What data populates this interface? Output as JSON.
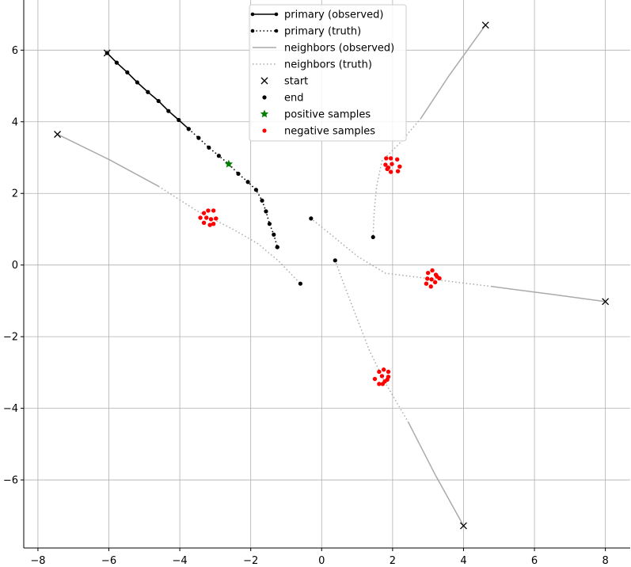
{
  "chart_data": {
    "type": "line",
    "xlim": [
      -8.4,
      8.7
    ],
    "ylim": [
      -7.9,
      7.4
    ],
    "x_ticks": [
      -8,
      -6,
      -4,
      -2,
      0,
      2,
      4,
      6,
      8
    ],
    "y_ticks": [
      -6,
      -4,
      -2,
      0,
      2,
      4,
      6
    ],
    "x_tick_labels": [
      "−8",
      "−6",
      "−4",
      "−2",
      "0",
      "2",
      "4",
      "6",
      "8"
    ],
    "y_tick_labels": [
      "−6",
      "−4",
      "−2",
      "0",
      "2",
      "4",
      "6"
    ],
    "grid": true,
    "legend_position": "top-center",
    "legend": [
      {
        "label": "primary (observed)",
        "kind": "line-dot-solid",
        "color": "#000000"
      },
      {
        "label": "primary (truth)",
        "kind": "line-dot-dotted",
        "color": "#000000"
      },
      {
        "label": "neighbors (observed)",
        "kind": "line-solid",
        "color": "#aaaaaa"
      },
      {
        "label": "neighbors (truth)",
        "kind": "line-dotted",
        "color": "#aaaaaa"
      },
      {
        "label": "start",
        "kind": "x-marker",
        "color": "#000000"
      },
      {
        "label": "end",
        "kind": "dot-marker",
        "color": "#000000"
      },
      {
        "label": "positive samples",
        "kind": "star-marker",
        "color": "#008000"
      },
      {
        "label": "negative samples",
        "kind": "dot-marker",
        "color": "#ff0000"
      }
    ],
    "primary": {
      "color": "#000000",
      "observed": [
        [
          -6.05,
          5.92
        ],
        [
          -5.78,
          5.65
        ],
        [
          -5.48,
          5.38
        ],
        [
          -5.2,
          5.1
        ],
        [
          -4.9,
          4.83
        ],
        [
          -4.6,
          4.58
        ],
        [
          -4.32,
          4.3
        ],
        [
          -4.03,
          4.05
        ],
        [
          -3.75,
          3.8
        ]
      ],
      "truth": [
        [
          -3.75,
          3.8
        ],
        [
          -3.47,
          3.55
        ],
        [
          -3.18,
          3.28
        ],
        [
          -2.9,
          3.05
        ],
        [
          -2.62,
          2.82
        ],
        [
          -2.35,
          2.55
        ],
        [
          -2.08,
          2.32
        ],
        [
          -1.85,
          2.1
        ],
        [
          -1.68,
          1.8
        ],
        [
          -1.57,
          1.5
        ],
        [
          -1.47,
          1.15
        ],
        [
          -1.35,
          0.85
        ],
        [
          -1.25,
          0.5
        ]
      ],
      "start": [
        -6.05,
        5.92
      ],
      "end": [
        -1.25,
        0.5
      ]
    },
    "neighbors": [
      {
        "color": "#aaaaaa",
        "observed": [
          [
            -7.45,
            3.65
          ],
          [
            -6.0,
            2.95
          ],
          [
            -4.6,
            2.2
          ]
        ],
        "truth": [
          [
            -4.6,
            2.2
          ],
          [
            -3.5,
            1.5
          ],
          [
            -2.5,
            1.0
          ],
          [
            -1.8,
            0.6
          ],
          [
            -1.2,
            0.1
          ],
          [
            -0.6,
            -0.52
          ]
        ],
        "start": [
          -7.45,
          3.65
        ],
        "end": [
          -0.6,
          -0.52
        ]
      },
      {
        "color": "#aaaaaa",
        "observed": [
          [
            8.0,
            -1.02
          ],
          [
            6.5,
            -0.82
          ],
          [
            4.8,
            -0.6
          ]
        ],
        "truth": [
          [
            4.8,
            -0.6
          ],
          [
            3.8,
            -0.48
          ],
          [
            2.8,
            -0.35
          ],
          [
            1.8,
            -0.23
          ],
          [
            1.0,
            0.25
          ],
          [
            0.3,
            0.82
          ],
          [
            -0.3,
            1.3
          ]
        ],
        "start": [
          8.0,
          -1.02
        ],
        "end": [
          -0.3,
          1.3
        ]
      },
      {
        "color": "#aaaaaa",
        "observed": [
          [
            4.0,
            -7.28
          ],
          [
            3.2,
            -5.85
          ],
          [
            2.45,
            -4.4
          ]
        ],
        "truth": [
          [
            2.45,
            -4.4
          ],
          [
            1.8,
            -3.3
          ],
          [
            1.35,
            -2.4
          ],
          [
            1.0,
            -1.5
          ],
          [
            0.65,
            -0.6
          ],
          [
            0.38,
            0.13
          ]
        ],
        "start": [
          4.0,
          -7.28
        ],
        "end": [
          0.38,
          0.13
        ]
      },
      {
        "color": "#aaaaaa",
        "observed": [
          [
            4.62,
            6.7
          ],
          [
            3.6,
            5.3
          ],
          [
            2.8,
            4.1
          ]
        ],
        "truth": [
          [
            2.8,
            4.1
          ],
          [
            2.2,
            3.4
          ],
          [
            1.7,
            2.9
          ],
          [
            1.55,
            2.2
          ],
          [
            1.48,
            1.5
          ],
          [
            1.45,
            0.78
          ]
        ],
        "start": [
          4.62,
          6.7
        ],
        "end": [
          1.45,
          0.78
        ]
      }
    ],
    "positive_samples": [
      [
        -2.62,
        2.82
      ]
    ],
    "negative_samples": [
      [
        -3.05,
        1.52
      ],
      [
        -3.2,
        1.52
      ],
      [
        -3.32,
        1.45
      ],
      [
        -3.42,
        1.32
      ],
      [
        -3.32,
        1.18
      ],
      [
        -3.15,
        1.12
      ],
      [
        -3.05,
        1.15
      ],
      [
        -2.98,
        1.3
      ],
      [
        -3.25,
        1.32
      ],
      [
        -3.12,
        1.28
      ],
      [
        1.82,
        2.98
      ],
      [
        1.95,
        2.98
      ],
      [
        2.13,
        2.95
      ],
      [
        2.2,
        2.75
      ],
      [
        2.15,
        2.62
      ],
      [
        1.95,
        2.6
      ],
      [
        1.85,
        2.68
      ],
      [
        1.8,
        2.8
      ],
      [
        1.98,
        2.82
      ],
      [
        1.88,
        2.72
      ],
      [
        3.12,
        -0.15
      ],
      [
        3.0,
        -0.22
      ],
      [
        3.22,
        -0.27
      ],
      [
        3.32,
        -0.37
      ],
      [
        2.98,
        -0.38
      ],
      [
        3.2,
        -0.48
      ],
      [
        2.95,
        -0.52
      ],
      [
        3.08,
        -0.6
      ],
      [
        3.1,
        -0.4
      ],
      [
        3.25,
        -0.32
      ],
      [
        1.75,
        -2.92
      ],
      [
        1.62,
        -2.98
      ],
      [
        1.88,
        -2.98
      ],
      [
        1.88,
        -3.12
      ],
      [
        1.5,
        -3.18
      ],
      [
        1.85,
        -3.2
      ],
      [
        1.62,
        -3.32
      ],
      [
        1.72,
        -3.32
      ],
      [
        1.78,
        -3.25
      ],
      [
        1.7,
        -3.1
      ]
    ]
  }
}
